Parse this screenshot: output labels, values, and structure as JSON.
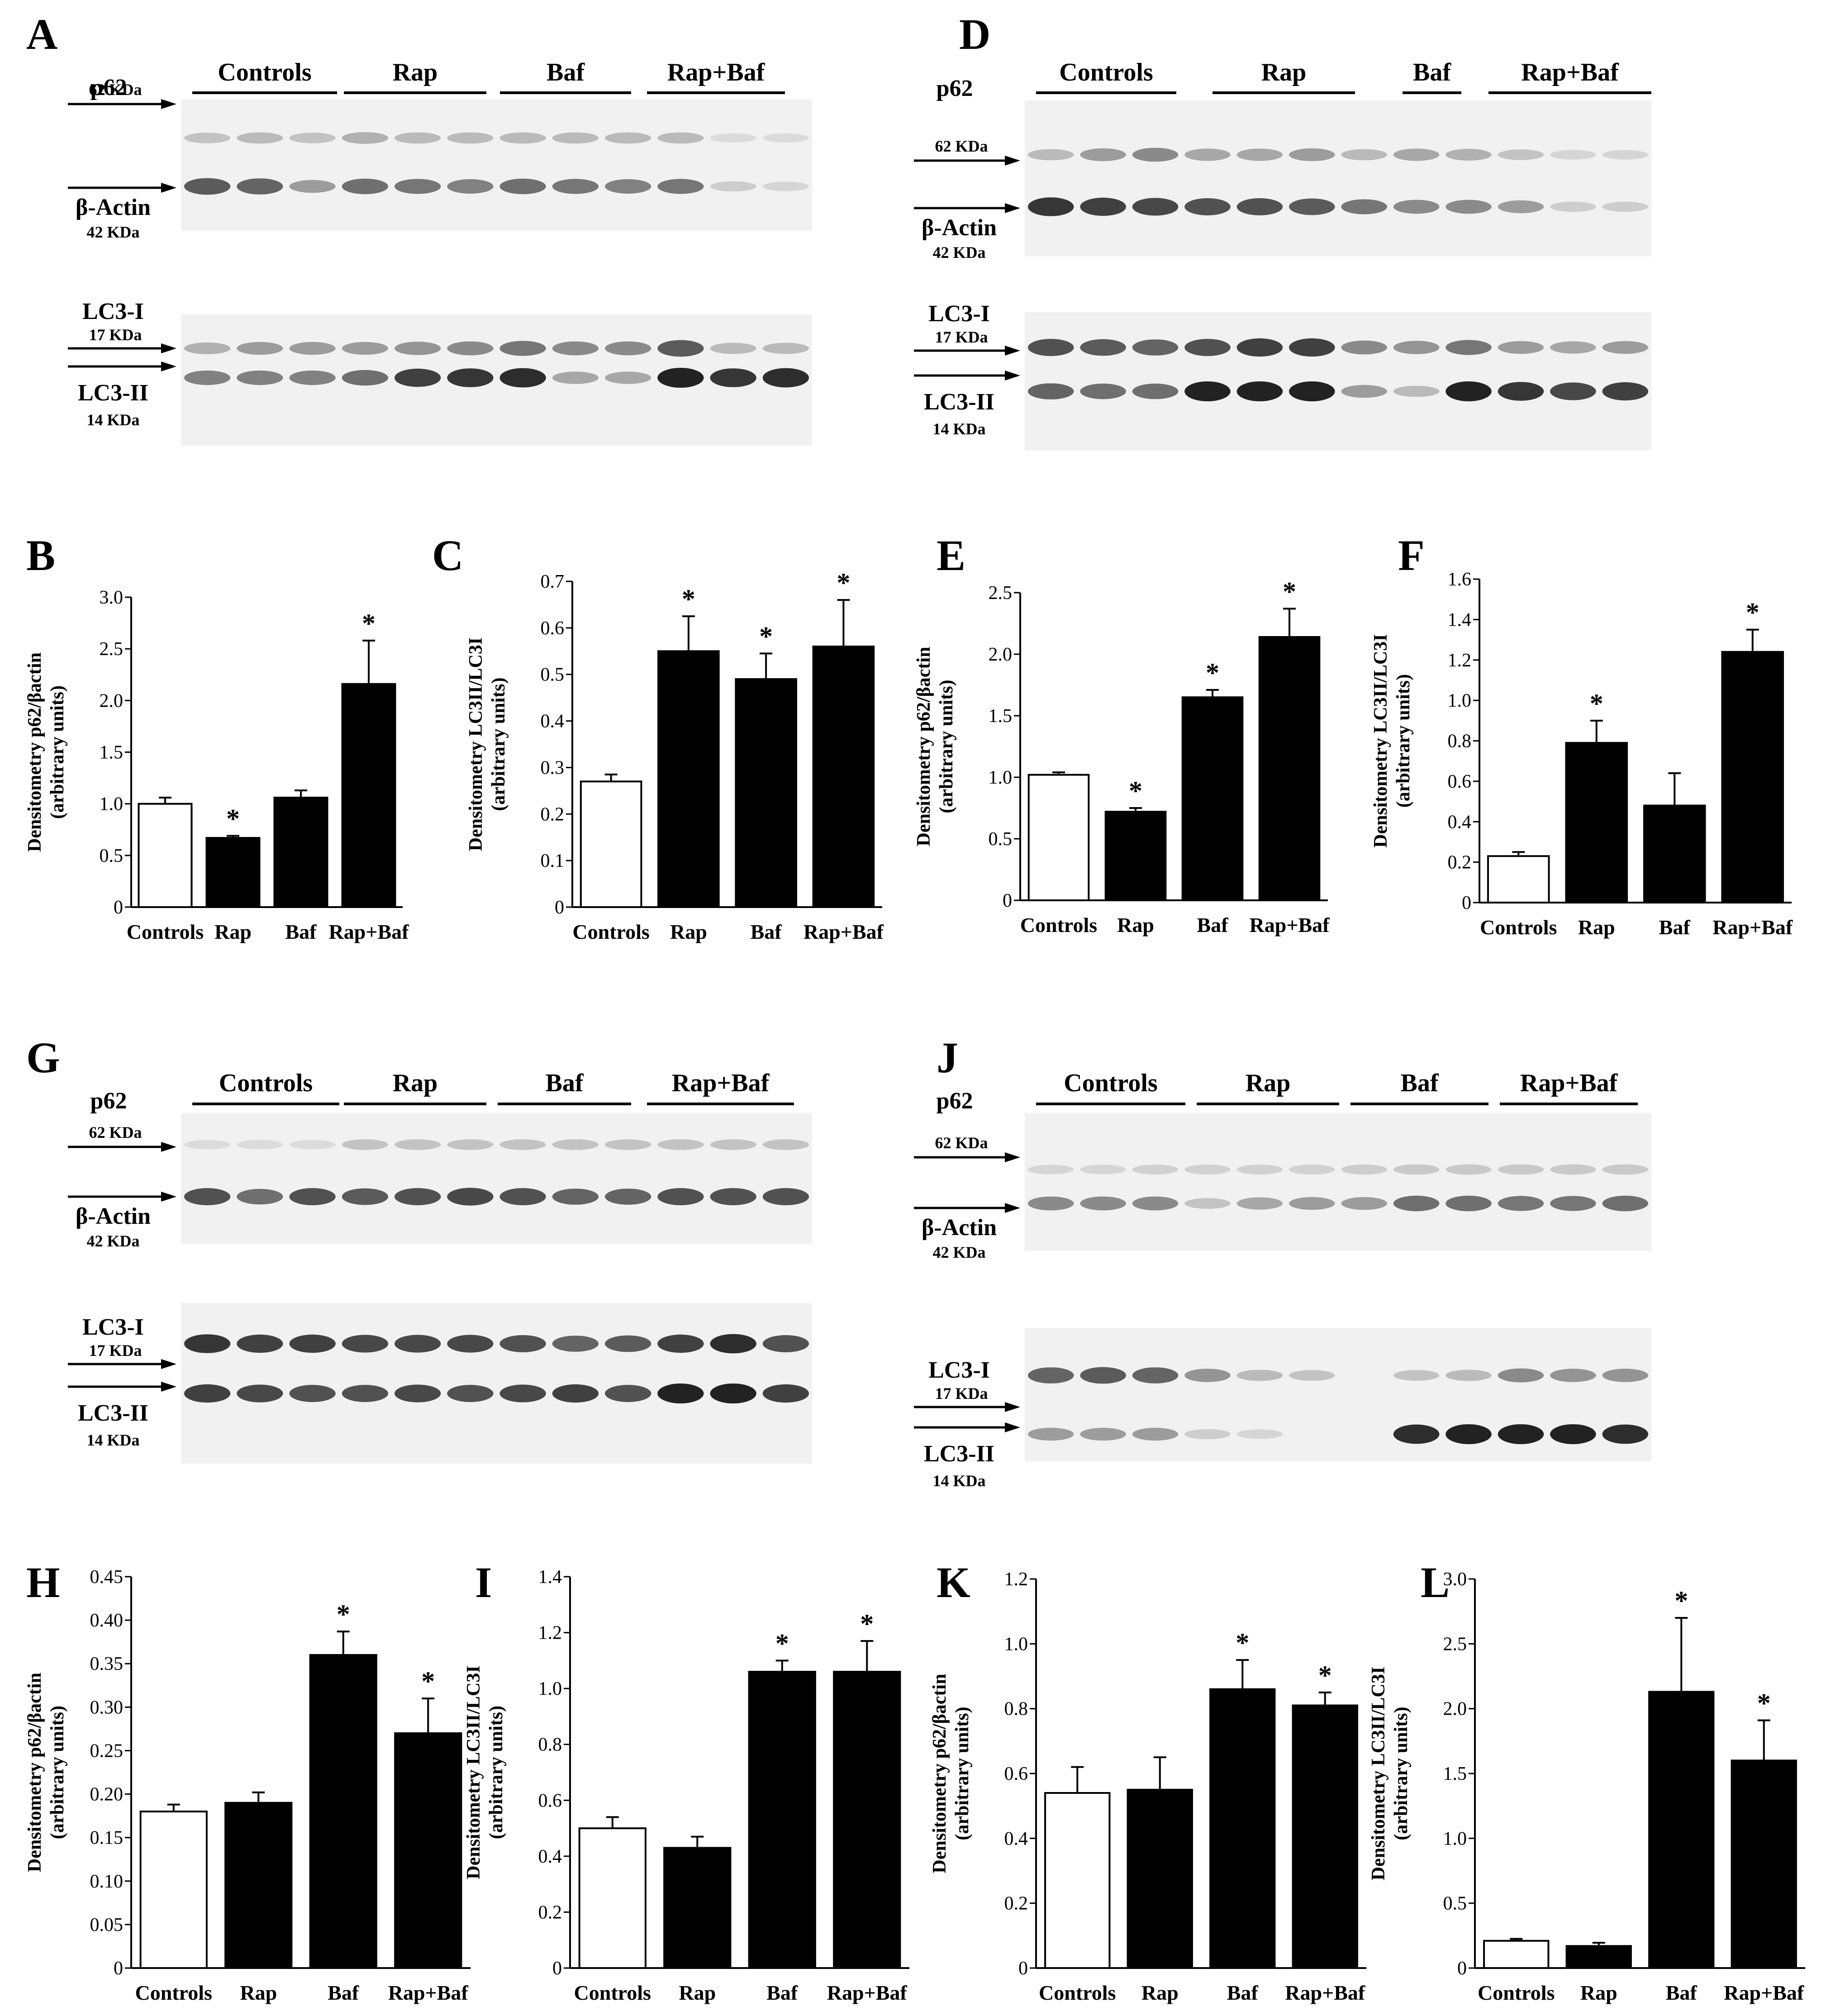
{
  "colors": {
    "filled": "#000000",
    "open": "#ffffff",
    "axis": "#000000",
    "blot_background": "#f1f1f1",
    "band": "#1e1e1e"
  },
  "categories": [
    "Controls",
    "Rap",
    "Baf",
    "Rap+Baf"
  ],
  "chart_data": [
    {
      "panel": "B",
      "type": "bar",
      "categories": [
        "Controls",
        "Rap",
        "Baf",
        "Rap+Baf"
      ],
      "values": [
        1.0,
        0.67,
        1.06,
        2.16
      ],
      "errors": [
        0.06,
        0.02,
        0.07,
        0.42
      ],
      "significant": [
        false,
        true,
        false,
        true
      ],
      "ylabel": [
        "Densitometry p62/βactin",
        "(arbitrary units)"
      ],
      "ylim": [
        0,
        3.0
      ],
      "ticks": [
        "0",
        "0.5",
        "1.0",
        "1.5",
        "2.0",
        "2.5",
        "3.0"
      ]
    },
    {
      "panel": "C",
      "type": "bar",
      "categories": [
        "Controls",
        "Rap",
        "Baf",
        "Rap+Baf"
      ],
      "values": [
        0.27,
        0.55,
        0.49,
        0.56
      ],
      "errors": [
        0.015,
        0.075,
        0.055,
        0.1
      ],
      "significant": [
        false,
        true,
        true,
        true
      ],
      "ylabel": [
        "Densitometry LC3II/LC3I",
        "(arbitrary units)"
      ],
      "ylim": [
        0,
        0.7
      ],
      "ticks": [
        "0",
        "0.1",
        "0.2",
        "0.3",
        "0.4",
        "0.5",
        "0.6",
        "0.7"
      ]
    },
    {
      "panel": "E",
      "type": "bar",
      "categories": [
        "Controls",
        "Rap",
        "Baf",
        "Rap+Baf"
      ],
      "values": [
        1.02,
        0.72,
        1.65,
        2.14
      ],
      "errors": [
        0.02,
        0.03,
        0.06,
        0.23
      ],
      "significant": [
        false,
        true,
        true,
        true
      ],
      "ylabel": [
        "Densitometry p62/βactin",
        "(arbitrary units)"
      ],
      "ylim": [
        0,
        2.5
      ],
      "ticks": [
        "0",
        "0.5",
        "1.0",
        "1.5",
        "2.0",
        "2.5"
      ]
    },
    {
      "panel": "F",
      "type": "bar",
      "categories": [
        "Controls",
        "Rap",
        "Baf",
        "Rap+Baf"
      ],
      "values": [
        0.23,
        0.79,
        0.48,
        1.24
      ],
      "errors": [
        0.02,
        0.11,
        0.16,
        0.11
      ],
      "significant": [
        false,
        true,
        false,
        true
      ],
      "ylabel": [
        "Densitometry LC3II/LC3I",
        "(arbitrary units)"
      ],
      "ylim": [
        0,
        1.6
      ],
      "ticks": [
        "0",
        "0.2",
        "0.4",
        "0.6",
        "0.8",
        "1.0",
        "1.2",
        "1.4",
        "1.6"
      ]
    },
    {
      "panel": "H",
      "type": "bar",
      "categories": [
        "Controls",
        "Rap",
        "Baf",
        "Rap+Baf"
      ],
      "values": [
        0.18,
        0.19,
        0.36,
        0.27
      ],
      "errors": [
        0.008,
        0.012,
        0.027,
        0.04
      ],
      "significant": [
        false,
        false,
        true,
        true
      ],
      "ylabel": [
        "Densitometry p62/βactin",
        "(arbitrary units)"
      ],
      "ylim": [
        0,
        0.45
      ],
      "ticks": [
        "0",
        "0.05",
        "0.10",
        "0.15",
        "0.20",
        "0.25",
        "0.30",
        "0.35",
        "0.40",
        "0.45"
      ]
    },
    {
      "panel": "I",
      "type": "bar",
      "categories": [
        "Controls",
        "Rap",
        "Baf",
        "Rap+Baf"
      ],
      "values": [
        0.5,
        0.43,
        1.06,
        1.06
      ],
      "errors": [
        0.04,
        0.04,
        0.04,
        0.11
      ],
      "significant": [
        false,
        false,
        true,
        true
      ],
      "ylabel": [
        "Densitometry LC3II/LC3I",
        "(arbitrary units)"
      ],
      "ylim": [
        0,
        1.4
      ],
      "ticks": [
        "0",
        "0.2",
        "0.4",
        "0.6",
        "0.8",
        "1.0",
        "1.2",
        "1.4"
      ]
    },
    {
      "panel": "K",
      "type": "bar",
      "categories": [
        "Controls",
        "Rap",
        "Baf",
        "Rap+Baf"
      ],
      "values": [
        0.54,
        0.55,
        0.86,
        0.81
      ],
      "errors": [
        0.08,
        0.1,
        0.09,
        0.04
      ],
      "significant": [
        false,
        false,
        true,
        true
      ],
      "ylabel": [
        "Densitometry p62/βactin",
        "(arbitrary units)"
      ],
      "ylim": [
        0,
        1.2
      ],
      "ticks": [
        "0",
        "0.2",
        "0.4",
        "0.6",
        "0.8",
        "1.0",
        "1.2"
      ]
    },
    {
      "panel": "L",
      "type": "bar",
      "categories": [
        "Controls",
        "Rap",
        "Baf",
        "Rap+Baf"
      ],
      "values": [
        0.21,
        0.17,
        2.13,
        1.6
      ],
      "errors": [
        0.015,
        0.025,
        0.57,
        0.31
      ],
      "significant": [
        false,
        false,
        true,
        true
      ],
      "ylabel": [
        "Densitometry LC3II/LC3I",
        "(arbitrary units)"
      ],
      "ylim": [
        0,
        3.0
      ],
      "ticks": [
        "0",
        "0.5",
        "1.0",
        "1.5",
        "2.0",
        "2.5",
        "3.0"
      ]
    }
  ],
  "blots": [
    {
      "panel": "A",
      "group_labels": [
        "Controls",
        "Rap",
        "Baf",
        "Rap+Baf"
      ],
      "top_labels": [
        "p62",
        "62 KDa",
        "β-Actin",
        "42 KDa"
      ],
      "bottom_labels": [
        "LC3-I",
        "17 KDa",
        "LC3-II",
        "14 KDa"
      ],
      "bands": [
        [
          0.15,
          0.2,
          0.15,
          0.25,
          0.2,
          0.2,
          0.2,
          0.2,
          0.2,
          0.2,
          0.02,
          0.02
        ],
        [
          0.7,
          0.65,
          0.35,
          0.6,
          0.55,
          0.5,
          0.6,
          0.55,
          0.5,
          0.55,
          0.1,
          0.05
        ],
        [
          0.25,
          0.35,
          0.35,
          0.35,
          0.4,
          0.45,
          0.55,
          0.45,
          0.45,
          0.7,
          0.2,
          0.2
        ],
        [
          0.5,
          0.5,
          0.5,
          0.6,
          0.85,
          0.9,
          0.95,
          0.3,
          0.3,
          1.0,
          0.9,
          0.95
        ]
      ]
    },
    {
      "panel": "D",
      "group_labels": [
        "Controls",
        "Rap",
        "Baf",
        "Rap+Baf"
      ],
      "top_labels": [
        "p62",
        "62 KDa",
        "β-Actin",
        "42 KDa"
      ],
      "bottom_labels": [
        "LC3-I",
        "17 KDa",
        "LC3-II",
        "14 KDa"
      ],
      "bands": [
        [
          0.2,
          0.35,
          0.45,
          0.3,
          0.3,
          0.35,
          0.2,
          0.3,
          0.25,
          0.15,
          0.05,
          0.05
        ],
        [
          0.9,
          0.85,
          0.8,
          0.75,
          0.75,
          0.7,
          0.55,
          0.45,
          0.45,
          0.35,
          0.1,
          0.1
        ],
        [
          0.75,
          0.7,
          0.65,
          0.75,
          0.85,
          0.85,
          0.45,
          0.4,
          0.55,
          0.35,
          0.3,
          0.35
        ],
        [
          0.65,
          0.6,
          0.6,
          1.0,
          1.0,
          1.0,
          0.35,
          0.2,
          1.0,
          0.9,
          0.8,
          0.85
        ]
      ]
    },
    {
      "panel": "G",
      "group_labels": [
        "Controls",
        "Rap",
        "Baf",
        "Rap+Baf"
      ],
      "top_labels": [
        "p62",
        "62 KDa",
        "β-Actin",
        "42 KDa"
      ],
      "bottom_labels": [
        "LC3-I",
        "17 KDa",
        "LC3-II",
        "14 KDa"
      ],
      "bands": [
        [
          0.02,
          0.02,
          0.02,
          0.15,
          0.15,
          0.15,
          0.15,
          0.15,
          0.15,
          0.15,
          0.15,
          0.15
        ],
        [
          0.75,
          0.6,
          0.75,
          0.7,
          0.75,
          0.8,
          0.75,
          0.65,
          0.65,
          0.75,
          0.75,
          0.75
        ],
        [
          0.9,
          0.85,
          0.85,
          0.8,
          0.8,
          0.8,
          0.75,
          0.65,
          0.7,
          0.85,
          0.95,
          0.75
        ],
        [
          0.85,
          0.8,
          0.75,
          0.75,
          0.8,
          0.75,
          0.8,
          0.85,
          0.75,
          1.0,
          1.0,
          0.85
        ]
      ]
    },
    {
      "panel": "J",
      "group_labels": [
        "Controls",
        "Rap",
        "Baf",
        "Rap+Baf"
      ],
      "top_labels": [
        "p62",
        "62 KDa",
        "β-Actin",
        "42 KDa"
      ],
      "bottom_labels": [
        "LC3-I",
        "17 KDa",
        "LC3-II",
        "14 KDa"
      ],
      "bands": [
        [
          0.05,
          0.05,
          0.08,
          0.08,
          0.08,
          0.08,
          0.1,
          0.12,
          0.12,
          0.12,
          0.12,
          0.12
        ],
        [
          0.45,
          0.45,
          0.45,
          0.15,
          0.3,
          0.35,
          0.35,
          0.6,
          0.6,
          0.55,
          0.55,
          0.6
        ],
        [
          0.65,
          0.7,
          0.65,
          0.4,
          0.2,
          0.15,
          0.0,
          0.15,
          0.2,
          0.45,
          0.4,
          0.4
        ],
        [
          0.35,
          0.35,
          0.35,
          0.1,
          0.05,
          0.0,
          0.0,
          0.95,
          1.0,
          1.0,
          1.0,
          0.95
        ]
      ]
    }
  ]
}
